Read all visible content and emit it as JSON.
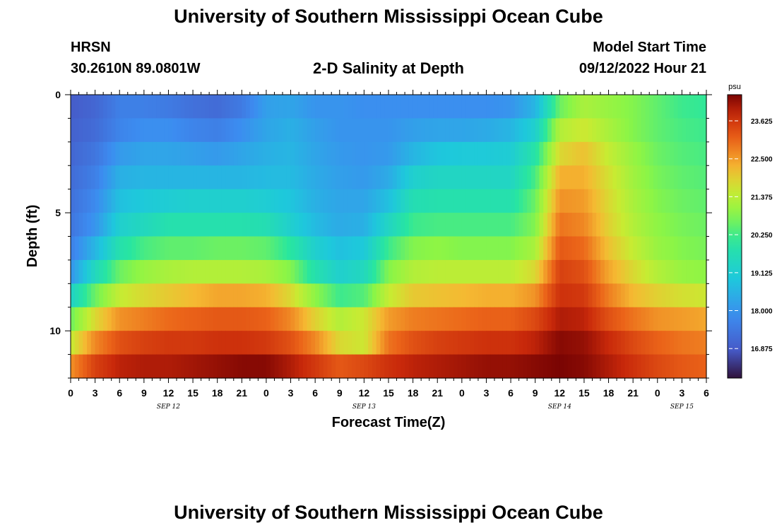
{
  "header": {
    "title": "University of Southern Mississippi Ocean Cube",
    "station": "HRSN",
    "coords": "30.2610N  89.0801W",
    "subtitle": "2-D Salinity at Depth",
    "model_start_label": "Model Start Time",
    "model_start_value": "09/12/2022 Hour 21"
  },
  "footer": {
    "title": "University of Southern Mississippi Ocean Cube"
  },
  "chart_data": {
    "type": "heatmap",
    "title": "2-D Salinity at Depth",
    "xlabel": "Forecast Time(Z)",
    "ylabel": "Depth (ft)",
    "x_tick_labels": [
      "0",
      "3",
      "6",
      "9",
      "12",
      "15",
      "18",
      "21",
      "0",
      "3",
      "6",
      "9",
      "12",
      "15",
      "18",
      "21",
      "0",
      "3",
      "6",
      "9",
      "12",
      "15",
      "18",
      "21",
      "0",
      "3",
      "6"
    ],
    "day_labels": [
      {
        "label": "SEP 12",
        "at_tick": 4
      },
      {
        "label": "SEP 13",
        "at_tick": 12
      },
      {
        "label": "SEP 14",
        "at_tick": 20
      },
      {
        "label": "SEP 15",
        "at_tick": 25
      }
    ],
    "y_tick_labels": [
      {
        "depth": 0,
        "label": "0"
      },
      {
        "depth": 5,
        "label": "5"
      },
      {
        "depth": 10,
        "label": "10"
      }
    ],
    "ylim": [
      0,
      12
    ],
    "x_hours_range": [
      0,
      78
    ],
    "colorbar": {
      "unit": "psu",
      "range": [
        16.0,
        24.4
      ],
      "tick_values": [
        16.875,
        18.0,
        19.125,
        20.25,
        21.375,
        22.5,
        23.625
      ],
      "tick_labels": [
        "16.875",
        "18.000",
        "19.125",
        "20.250",
        "21.375",
        "22.500",
        "23.625"
      ]
    },
    "depth_layers_ft": [
      0.5,
      1.5,
      2.5,
      3.5,
      4.5,
      5.5,
      6.5,
      7.5,
      8.5,
      9.5,
      10.5,
      11.5
    ],
    "time_hours": [
      0,
      3,
      6,
      9,
      12,
      15,
      18,
      21,
      24,
      27,
      30,
      33,
      36,
      39,
      42,
      45,
      48,
      51,
      54,
      57,
      60,
      63,
      66,
      69,
      72,
      75,
      78
    ],
    "salinity_psu": [
      [
        16.9,
        17.1,
        17.6,
        17.6,
        17.5,
        17.3,
        17.2,
        17.5,
        18.2,
        18.3,
        18.0,
        18.0,
        17.9,
        17.9,
        17.9,
        17.9,
        17.9,
        17.9,
        18.0,
        18.6,
        20.6,
        21.2,
        21.0,
        20.8,
        20.5,
        20.2,
        20.1
      ],
      [
        17.0,
        17.2,
        17.7,
        17.9,
        17.9,
        17.7,
        17.6,
        17.9,
        18.3,
        18.5,
        18.2,
        18.0,
        18.0,
        18.0,
        18.2,
        18.3,
        18.3,
        18.4,
        18.6,
        19.2,
        21.3,
        21.6,
        21.2,
        20.8,
        20.5,
        20.3,
        20.2
      ],
      [
        17.1,
        17.4,
        18.1,
        18.3,
        18.3,
        18.2,
        18.1,
        18.3,
        18.5,
        18.6,
        18.3,
        18.1,
        18.0,
        18.1,
        18.6,
        18.9,
        19.0,
        19.0,
        19.1,
        19.9,
        21.8,
        22.1,
        21.5,
        21.0,
        20.6,
        20.4,
        20.3
      ],
      [
        17.2,
        17.6,
        18.5,
        18.6,
        18.6,
        18.6,
        18.6,
        18.6,
        18.7,
        18.7,
        18.4,
        18.2,
        18.1,
        18.4,
        19.2,
        19.4,
        19.4,
        19.4,
        19.4,
        20.3,
        22.3,
        22.3,
        21.7,
        21.1,
        20.7,
        20.5,
        20.4
      ],
      [
        17.3,
        17.8,
        18.8,
        19.0,
        19.1,
        19.2,
        19.2,
        19.2,
        19.1,
        18.9,
        18.5,
        18.3,
        18.3,
        18.8,
        19.7,
        19.8,
        19.8,
        19.8,
        19.8,
        20.6,
        22.6,
        22.5,
        21.8,
        21.2,
        20.8,
        20.6,
        20.5
      ],
      [
        17.4,
        18.0,
        19.2,
        19.5,
        19.8,
        19.8,
        19.8,
        19.8,
        19.7,
        19.2,
        18.7,
        18.4,
        18.5,
        19.4,
        20.2,
        20.3,
        20.3,
        20.3,
        20.3,
        20.8,
        22.9,
        22.7,
        21.9,
        21.3,
        20.9,
        20.7,
        20.6
      ],
      [
        17.6,
        18.6,
        19.8,
        20.3,
        20.5,
        20.5,
        20.6,
        20.6,
        20.5,
        20.0,
        19.2,
        18.8,
        19.0,
        20.2,
        20.8,
        20.9,
        20.8,
        20.8,
        20.8,
        21.2,
        23.2,
        23.0,
        22.1,
        21.5,
        21.0,
        20.8,
        20.7
      ],
      [
        18.0,
        19.5,
        20.6,
        21.0,
        21.2,
        21.3,
        21.3,
        21.3,
        21.2,
        20.8,
        19.8,
        19.2,
        19.5,
        20.8,
        21.3,
        21.4,
        21.4,
        21.4,
        21.4,
        21.8,
        23.5,
        23.3,
        22.4,
        21.8,
        21.3,
        21.0,
        20.9
      ],
      [
        19.3,
        20.6,
        21.5,
        21.8,
        22.0,
        22.2,
        22.4,
        22.4,
        22.3,
        21.8,
        20.9,
        20.2,
        20.4,
        21.5,
        22.0,
        22.1,
        22.2,
        22.3,
        22.3,
        22.6,
        23.7,
        23.6,
        22.8,
        22.2,
        21.9,
        21.7,
        21.6
      ],
      [
        20.6,
        21.8,
        22.6,
        22.8,
        23.0,
        23.1,
        23.2,
        23.2,
        23.1,
        22.7,
        21.9,
        21.3,
        21.6,
        22.5,
        22.8,
        22.9,
        23.0,
        23.1,
        23.1,
        23.4,
        24.0,
        23.9,
        23.3,
        22.9,
        22.6,
        22.5,
        22.4
      ],
      [
        21.5,
        22.7,
        23.3,
        23.5,
        23.6,
        23.6,
        23.7,
        23.7,
        23.6,
        23.3,
        22.7,
        21.8,
        21.6,
        22.9,
        23.3,
        23.5,
        23.6,
        23.7,
        23.7,
        23.9,
        24.3,
        24.2,
        23.8,
        23.4,
        23.1,
        22.9,
        22.8
      ],
      [
        22.6,
        23.5,
        23.9,
        24.0,
        24.0,
        24.1,
        24.2,
        24.3,
        24.3,
        24.0,
        23.6,
        23.2,
        23.4,
        23.7,
        23.9,
        24.0,
        24.1,
        24.2,
        24.2,
        24.3,
        24.4,
        24.3,
        24.0,
        23.7,
        23.4,
        23.2,
        23.1
      ]
    ]
  }
}
